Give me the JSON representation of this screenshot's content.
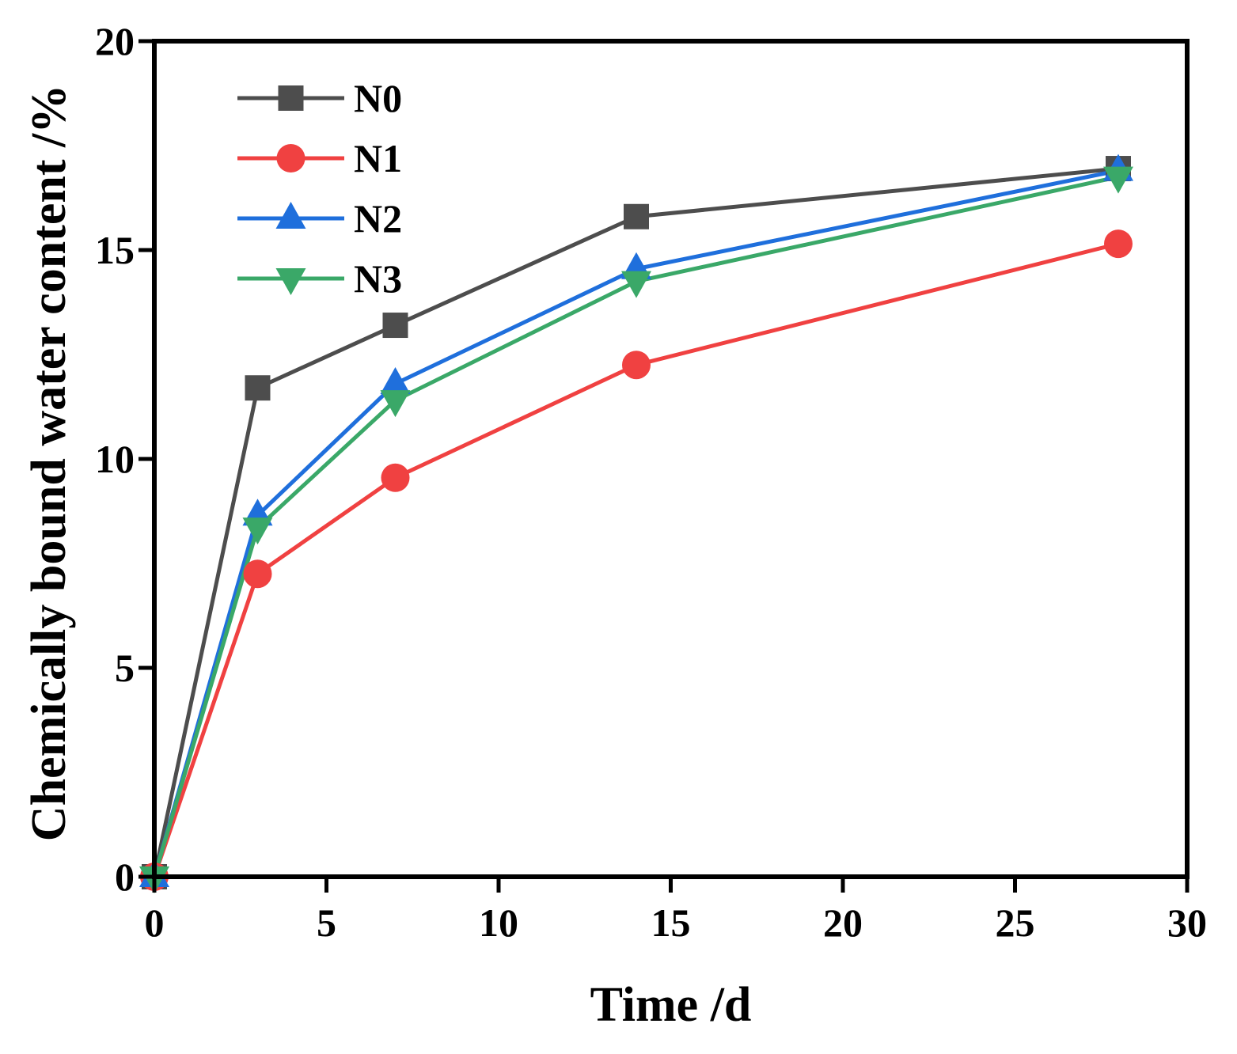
{
  "chart_data": {
    "type": "line",
    "title": "",
    "xlabel": "Time /d",
    "ylabel": "Chemically bound water content /%",
    "xlim": [
      0,
      30
    ],
    "ylim": [
      0,
      20
    ],
    "xticks": [
      0,
      5,
      10,
      15,
      20,
      25,
      30
    ],
    "yticks": [
      0,
      5,
      10,
      15,
      20
    ],
    "xtick_labels": [
      "0",
      "5",
      "10",
      "15",
      "20",
      "25",
      "30"
    ],
    "ytick_labels": [
      "0",
      "5",
      "10",
      "15",
      "20"
    ],
    "grid": false,
    "legend_position": "top-left",
    "x": [
      0,
      3,
      7,
      14,
      28
    ],
    "series": [
      {
        "name": "N0",
        "marker": "square",
        "color": "#4d4d4d",
        "values": [
          0,
          11.7,
          13.2,
          15.8,
          16.95
        ]
      },
      {
        "name": "N1",
        "marker": "circle",
        "color": "#f04141",
        "values": [
          0,
          7.25,
          9.55,
          12.25,
          15.15
        ]
      },
      {
        "name": "N2",
        "marker": "triangle-up",
        "color": "#1f6fdc",
        "values": [
          0,
          8.65,
          11.8,
          14.55,
          16.9
        ]
      },
      {
        "name": "N3",
        "marker": "triangle-down",
        "color": "#3aa868",
        "values": [
          0,
          8.35,
          11.4,
          14.25,
          16.75
        ]
      }
    ]
  }
}
